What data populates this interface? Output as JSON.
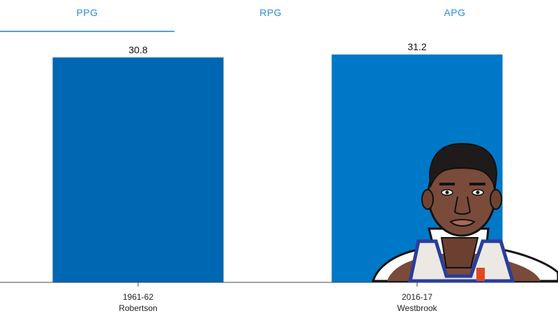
{
  "tabs": [
    {
      "label": "PPG",
      "active": true
    },
    {
      "label": "RPG",
      "active": false
    },
    {
      "label": "APG",
      "active": false
    }
  ],
  "colors": {
    "tab_text": "#2a8ee0",
    "tab_underline": "#4aa3e8",
    "bar_primary": "#0067b3",
    "bar_secondary": "#0078c8",
    "axis": "#444444"
  },
  "chart_data": {
    "type": "bar",
    "title": "",
    "xlabel": "",
    "ylabel": "",
    "categories": [
      "1961-62\nRobertson",
      "2016-17\nWestbrook"
    ],
    "values": [
      30.8,
      31.2
    ],
    "value_labels": [
      "30.8",
      "31.2"
    ],
    "ylim": [
      0,
      31.6
    ],
    "grid": false,
    "legend": "none"
  },
  "player_illustration": {
    "icon": "player-portrait-icon"
  }
}
